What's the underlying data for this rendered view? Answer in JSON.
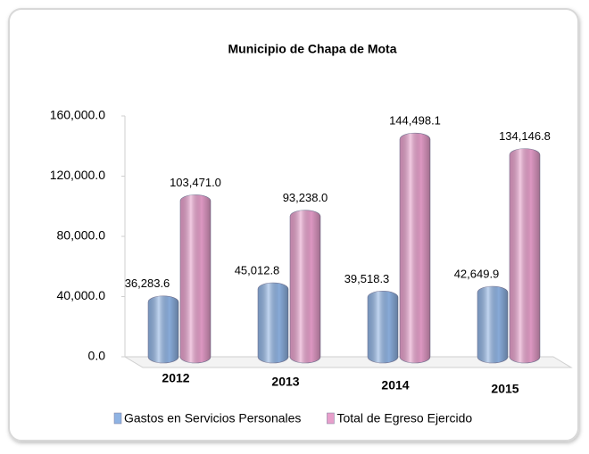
{
  "chart_data": {
    "type": "bar",
    "title": "Municipio de Chapa de Mota",
    "categories": [
      "2012",
      "2013",
      "2014",
      "2015"
    ],
    "series": [
      {
        "name": "Gastos en Servicios Personales",
        "color": "#8fb3e3",
        "values": [
          36283.6,
          45012.8,
          39518.3,
          42649.9
        ],
        "value_labels": [
          "36,283.6",
          "45,012.8",
          "39,518.3",
          "42,649.9"
        ]
      },
      {
        "name": "Total de Egreso Ejercido",
        "color": "#e79fcb",
        "values": [
          103471.0,
          93238.0,
          144498.1,
          134146.8
        ],
        "value_labels": [
          "103,471.0",
          "93,238.0",
          "144,498.1",
          "134,146.8"
        ]
      }
    ],
    "ylim": [
      0,
      160000
    ],
    "yticks": [
      {
        "value": 0,
        "label": "0.0"
      },
      {
        "value": 40000,
        "label": "40,000.0"
      },
      {
        "value": 80000,
        "label": "80,000.0"
      },
      {
        "value": 120000,
        "label": "120,000.0"
      },
      {
        "value": 160000,
        "label": "160,000.0"
      }
    ],
    "legend": "bottom"
  }
}
